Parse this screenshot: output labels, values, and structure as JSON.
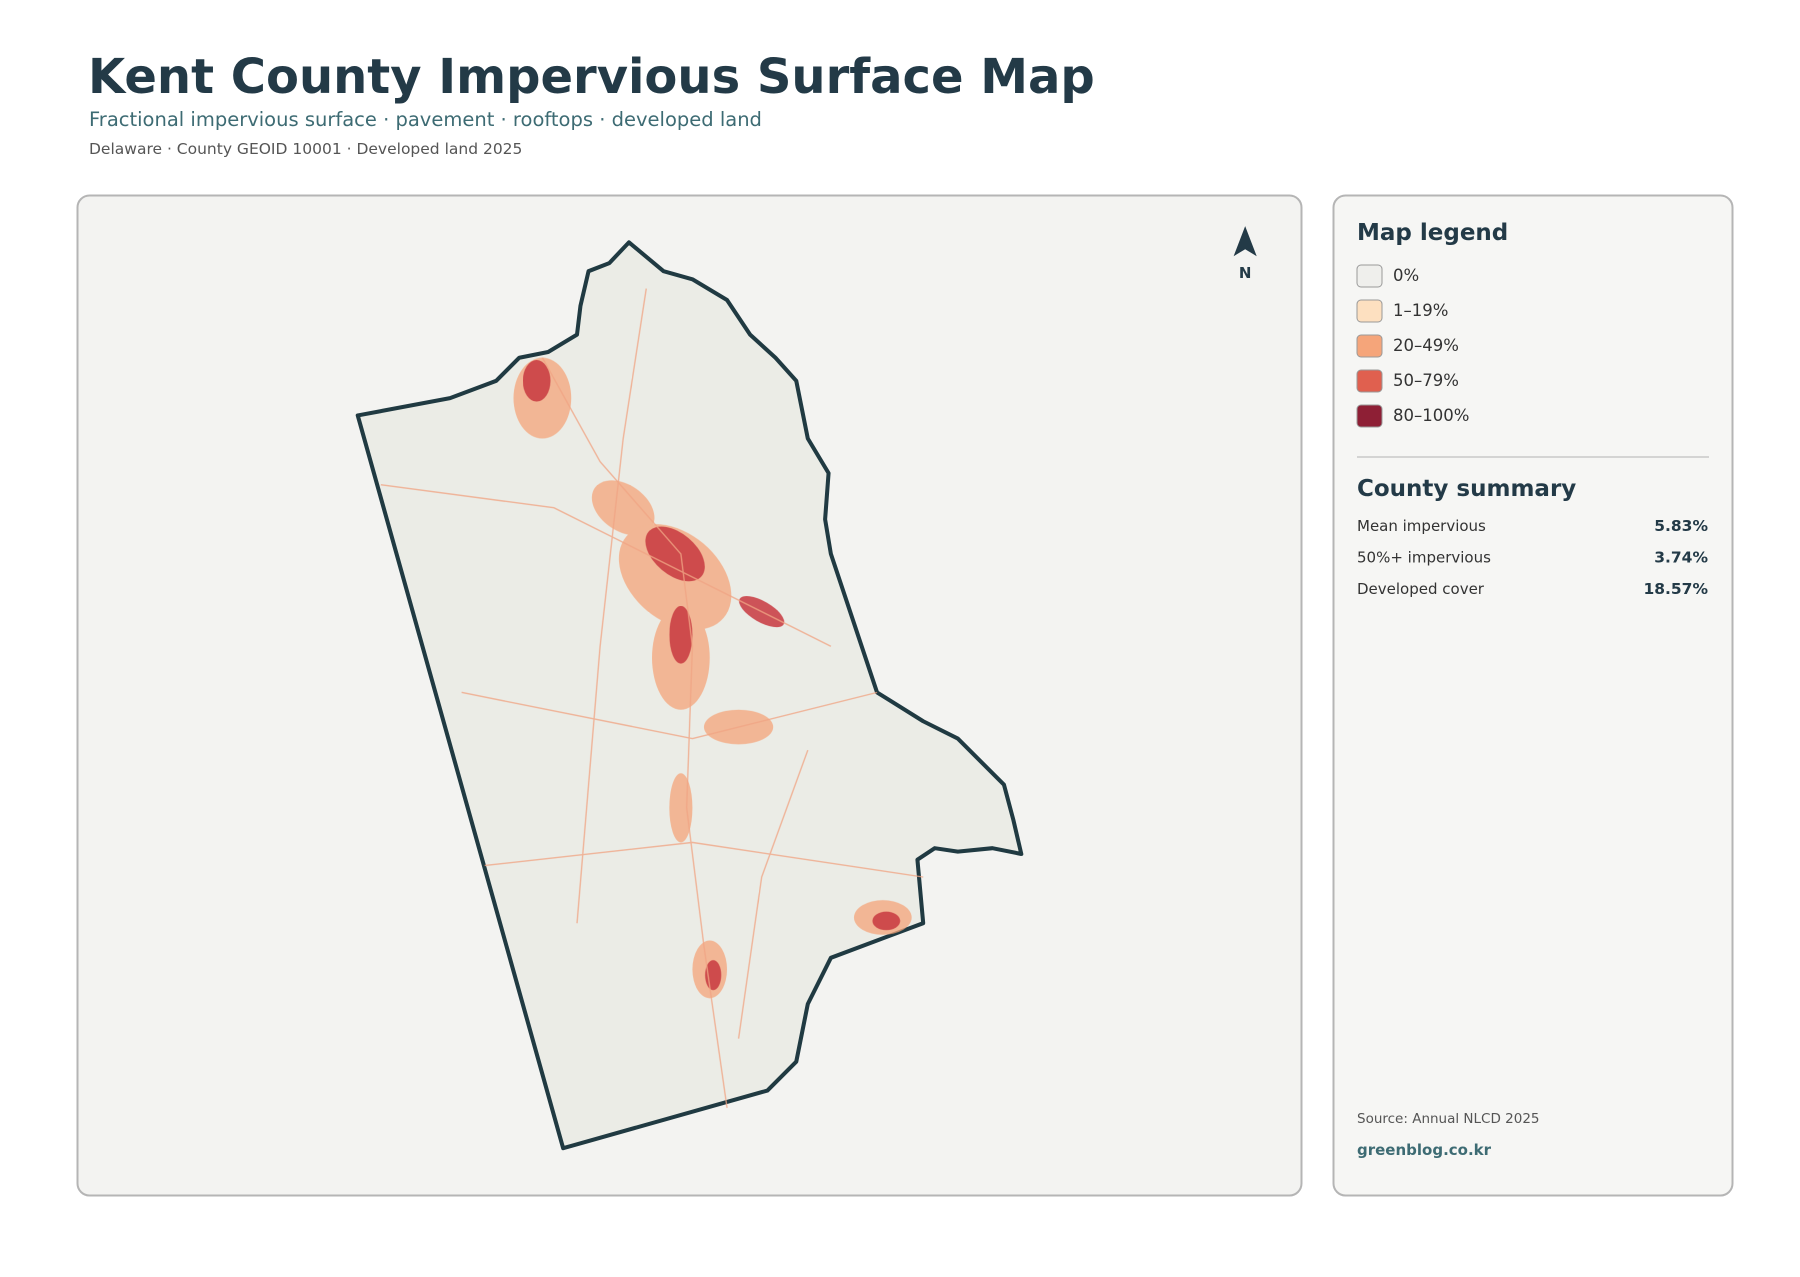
{
  "header": {
    "title": "Kent County Impervious Surface Map",
    "subtitle": "Fractional impervious surface · pavement · rooftops · developed land",
    "meta": "Delaware · County GEOID 10001 · Developed land 2025"
  },
  "map": {
    "north_label": "N"
  },
  "legend": {
    "title": "Map legend",
    "items": [
      {
        "label": "0%",
        "color": "#efefec"
      },
      {
        "label": "1–19%",
        "color": "#fde0c0"
      },
      {
        "label": "20–49%",
        "color": "#f5a57a"
      },
      {
        "label": "50–79%",
        "color": "#e0604f"
      },
      {
        "label": "80–100%",
        "color": "#8e1f35"
      }
    ]
  },
  "summary": {
    "title": "County summary",
    "rows": [
      {
        "label": "Mean impervious",
        "value": "5.83%"
      },
      {
        "label": "50%+ impervious",
        "value": "3.74%"
      },
      {
        "label": "Developed cover",
        "value": "18.57%"
      }
    ]
  },
  "footer": {
    "source": "Source: Annual NLCD 2025",
    "credit": "greenblog.co.kr"
  }
}
